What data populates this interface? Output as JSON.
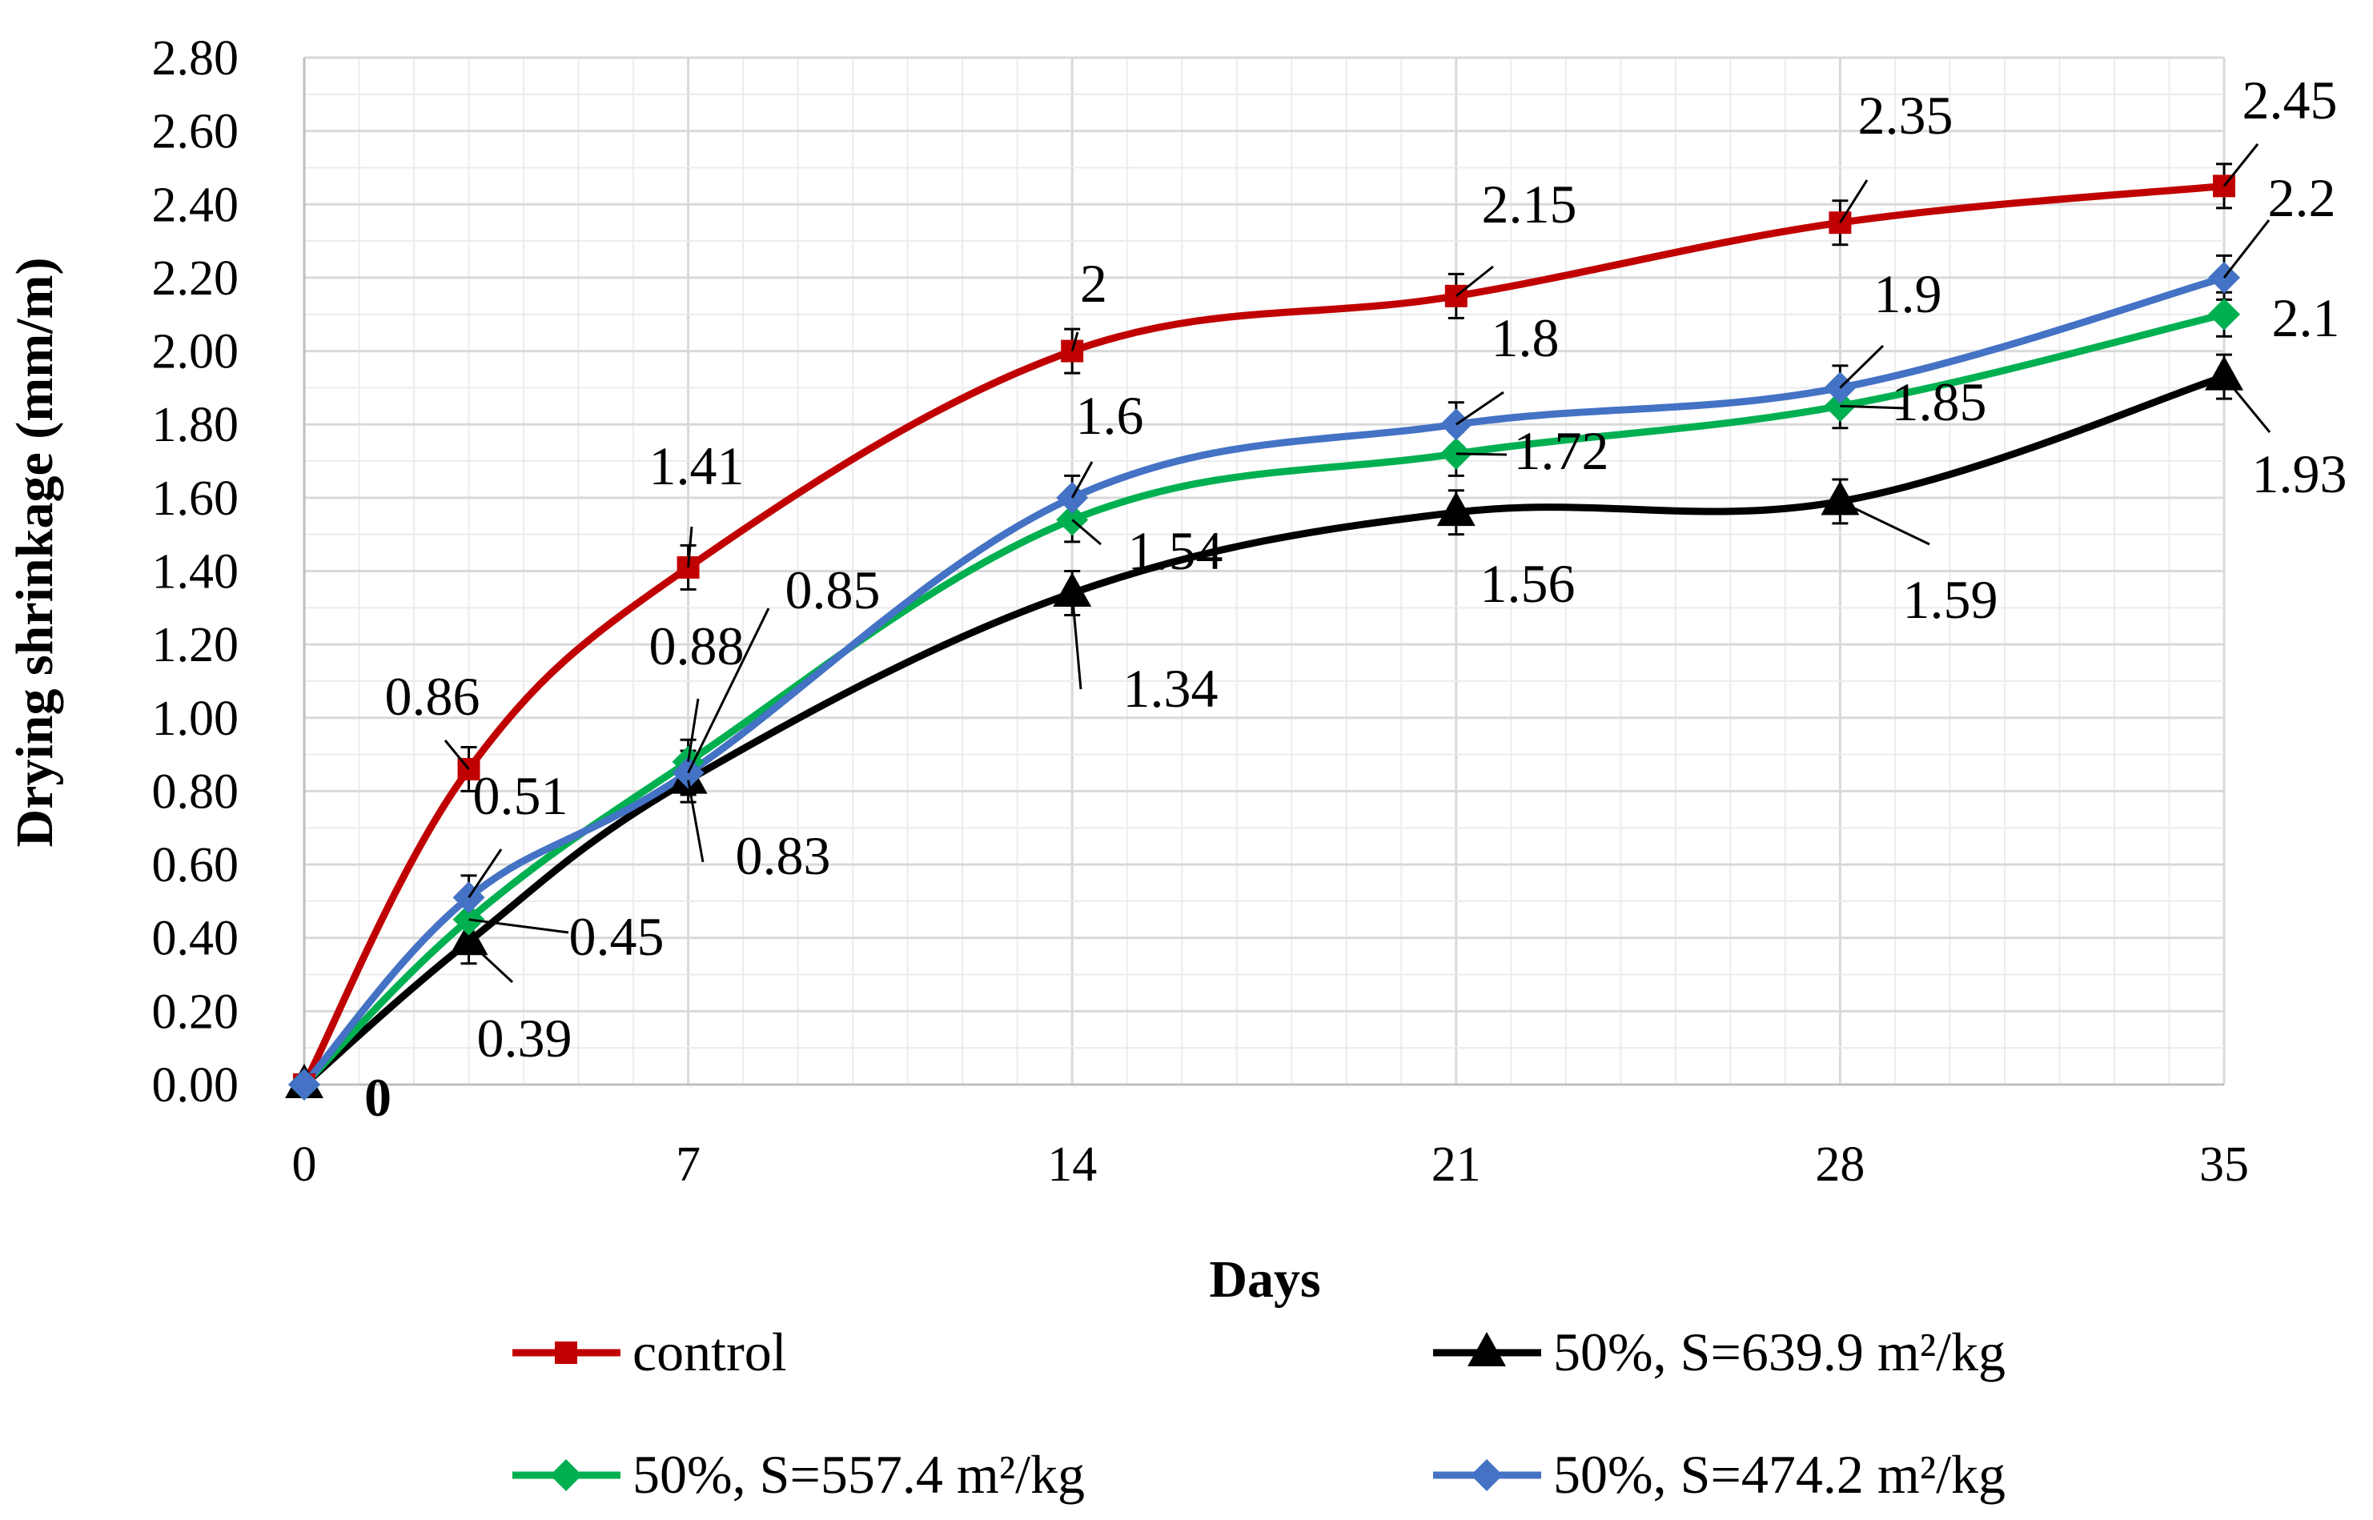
{
  "chart_data": {
    "type": "line",
    "title": "",
    "xlabel": "Days",
    "ylabel": "Drying shrinkage (mm/m)",
    "x": [
      0,
      3,
      7,
      14,
      21,
      28,
      35
    ],
    "xlim": [
      0,
      35
    ],
    "ylim": [
      0,
      2.8
    ],
    "x_ticks": [
      "0",
      "7",
      "14",
      "21",
      "28",
      "35"
    ],
    "x_tick_values": [
      0,
      7,
      14,
      21,
      28,
      35
    ],
    "y_ticks": [
      "0.00",
      "0.20",
      "0.40",
      "0.60",
      "0.80",
      "1.00",
      "1.20",
      "1.40",
      "1.60",
      "1.80",
      "2.00",
      "2.20",
      "2.40",
      "2.60",
      "2.80"
    ],
    "y_tick_values": [
      0,
      0.2,
      0.4,
      0.6,
      0.8,
      1.0,
      1.2,
      1.4,
      1.6,
      1.8,
      2.0,
      2.2,
      2.4,
      2.6,
      2.8
    ],
    "grid": true,
    "legend_position": "bottom",
    "error_bar": 0.06,
    "series": [
      {
        "name": "control",
        "color": "#c00000",
        "marker": "square",
        "values": [
          0,
          0.86,
          1.41,
          2.0,
          2.15,
          2.35,
          2.45
        ],
        "labels": [
          "",
          "0.86",
          "1.41",
          "2",
          "2.15",
          "2.35",
          "2.45"
        ]
      },
      {
        "name": "50%, S=639.9 m²/kg",
        "color": "#000000",
        "marker": "triangle",
        "values": [
          0,
          0.39,
          0.83,
          1.34,
          1.56,
          1.59,
          1.93
        ],
        "labels": [
          "0",
          "0.39",
          "0.83",
          "1.34",
          "1.56",
          "1.59",
          "1.93"
        ]
      },
      {
        "name": "50%, S=557.4 m²/kg",
        "color": "#00b050",
        "marker": "diamond",
        "values": [
          0,
          0.45,
          0.88,
          1.54,
          1.72,
          1.85,
          2.1
        ],
        "labels": [
          "",
          "0.45",
          "0.88",
          "1.54",
          "1.72",
          "1.85",
          "2.1"
        ]
      },
      {
        "name": "50%, S=474.2 m²/kg",
        "color": "#4472c4",
        "marker": "diamond",
        "values": [
          0,
          0.51,
          0.85,
          1.6,
          1.8,
          1.9,
          2.2
        ],
        "labels": [
          "",
          "0.51",
          "0.85",
          "1.6",
          "1.8",
          "1.9",
          "2.2"
        ]
      }
    ]
  }
}
